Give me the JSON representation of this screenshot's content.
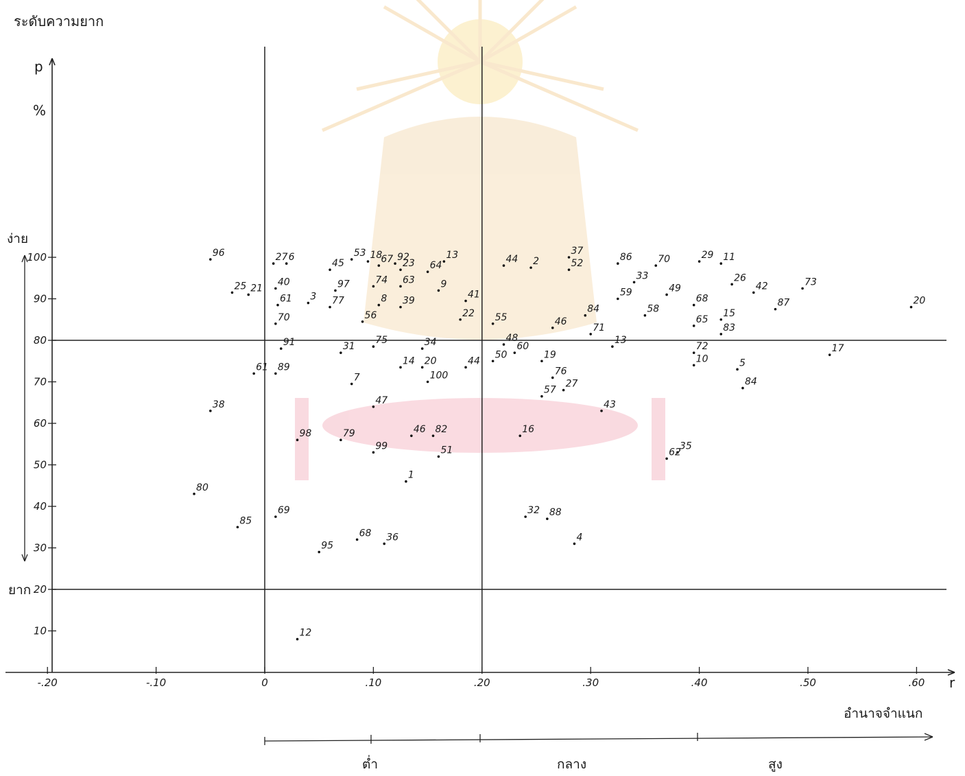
{
  "chart_data": {
    "type": "scatter",
    "title": "",
    "ylabel": "ระดับความยาก",
    "y_unit_p": "p",
    "y_unit_percent": "%",
    "xlabel": "อำนาจจำแนก",
    "x_unit": "r",
    "xlim": [
      -0.2,
      0.62
    ],
    "ylim": [
      0,
      100
    ],
    "x_ticks": [
      {
        "value": -0.2,
        "label": "-.20"
      },
      {
        "value": -0.1,
        "label": "-.10"
      },
      {
        "value": 0.0,
        "label": "0"
      },
      {
        "value": 0.1,
        "label": ".10"
      },
      {
        "value": 0.2,
        "label": ".20"
      },
      {
        "value": 0.3,
        "label": ".30"
      },
      {
        "value": 0.4,
        "label": ".40"
      },
      {
        "value": 0.5,
        "label": ".50"
      },
      {
        "value": 0.6,
        "label": ".60"
      }
    ],
    "y_ticks": [
      {
        "value": 10,
        "label": "10"
      },
      {
        "value": 20,
        "label": "20"
      },
      {
        "value": 30,
        "label": "30"
      },
      {
        "value": 40,
        "label": "40"
      },
      {
        "value": 50,
        "label": "50"
      },
      {
        "value": 60,
        "label": "60"
      },
      {
        "value": 70,
        "label": "70"
      },
      {
        "value": 80,
        "label": "80"
      },
      {
        "value": 90,
        "label": "90"
      },
      {
        "value": 100,
        "label": "100"
      }
    ],
    "reference_lines": {
      "x": [
        0.0,
        0.2
      ],
      "y": [
        20,
        80
      ]
    },
    "difficulty_labels": {
      "easy": "ง่าย",
      "hard": "ยาก"
    },
    "discrimination_labels": {
      "low": "ต่ำ",
      "mid": "กลาง",
      "high": "สูง"
    },
    "points": [
      {
        "label": "96",
        "x": -0.05,
        "y": 99.5
      },
      {
        "label": "25",
        "x": -0.03,
        "y": 91.5
      },
      {
        "label": "21",
        "x": -0.015,
        "y": 91.0
      },
      {
        "label": "27",
        "x": 0.008,
        "y": 98.5
      },
      {
        "label": "6",
        "x": 0.02,
        "y": 98.5
      },
      {
        "label": "40",
        "x": 0.01,
        "y": 92.5
      },
      {
        "label": "61",
        "x": 0.012,
        "y": 88.5
      },
      {
        "label": "70",
        "x": 0.01,
        "y": 84.0
      },
      {
        "label": "45",
        "x": 0.06,
        "y": 97.0
      },
      {
        "label": "53",
        "x": 0.08,
        "y": 99.5
      },
      {
        "label": "18",
        "x": 0.095,
        "y": 99.0
      },
      {
        "label": "67",
        "x": 0.105,
        "y": 98.0
      },
      {
        "label": "92",
        "x": 0.12,
        "y": 98.5
      },
      {
        "label": "23",
        "x": 0.125,
        "y": 97.0
      },
      {
        "label": "64",
        "x": 0.15,
        "y": 96.5
      },
      {
        "label": "13",
        "x": 0.165,
        "y": 99.0
      },
      {
        "label": "97",
        "x": 0.065,
        "y": 92.0
      },
      {
        "label": "3",
        "x": 0.04,
        "y": 89.0
      },
      {
        "label": "77",
        "x": 0.06,
        "y": 88.0
      },
      {
        "label": "74",
        "x": 0.1,
        "y": 93.0
      },
      {
        "label": "63",
        "x": 0.125,
        "y": 93.0
      },
      {
        "label": "9",
        "x": 0.16,
        "y": 92.0
      },
      {
        "label": "41",
        "x": 0.185,
        "y": 89.5
      },
      {
        "label": "8",
        "x": 0.105,
        "y": 88.5
      },
      {
        "label": "39",
        "x": 0.125,
        "y": 88.0
      },
      {
        "label": "56",
        "x": 0.09,
        "y": 84.5
      },
      {
        "label": "22",
        "x": 0.18,
        "y": 85.0
      },
      {
        "label": "44",
        "x": 0.22,
        "y": 98.0
      },
      {
        "label": "2",
        "x": 0.245,
        "y": 97.5
      },
      {
        "label": "37",
        "x": 0.28,
        "y": 100.0
      },
      {
        "label": "52",
        "x": 0.28,
        "y": 97.0
      },
      {
        "label": "86",
        "x": 0.325,
        "y": 98.5
      },
      {
        "label": "70",
        "x": 0.36,
        "y": 98.0
      },
      {
        "label": "33",
        "x": 0.34,
        "y": 94.0
      },
      {
        "label": "29",
        "x": 0.4,
        "y": 99.0
      },
      {
        "label": "11",
        "x": 0.42,
        "y": 98.5
      },
      {
        "label": "26",
        "x": 0.43,
        "y": 93.5
      },
      {
        "label": "42",
        "x": 0.45,
        "y": 91.5
      },
      {
        "label": "73",
        "x": 0.495,
        "y": 92.5
      },
      {
        "label": "59",
        "x": 0.325,
        "y": 90.0
      },
      {
        "label": "49",
        "x": 0.37,
        "y": 91.0
      },
      {
        "label": "68",
        "x": 0.395,
        "y": 88.5
      },
      {
        "label": "87",
        "x": 0.47,
        "y": 87.5
      },
      {
        "label": "20",
        "x": 0.595,
        "y": 88.0
      },
      {
        "label": "84",
        "x": 0.295,
        "y": 86.0
      },
      {
        "label": "58",
        "x": 0.35,
        "y": 86.0
      },
      {
        "label": "65",
        "x": 0.395,
        "y": 83.5
      },
      {
        "label": "15",
        "x": 0.42,
        "y": 85.0
      },
      {
        "label": "83",
        "x": 0.42,
        "y": 81.5
      },
      {
        "label": "55",
        "x": 0.21,
        "y": 84.0
      },
      {
        "label": "46",
        "x": 0.265,
        "y": 83.0
      },
      {
        "label": "71",
        "x": 0.3,
        "y": 81.5
      },
      {
        "label": "91",
        "x": 0.015,
        "y": 78.0
      },
      {
        "label": "31",
        "x": 0.07,
        "y": 77.0
      },
      {
        "label": "75",
        "x": 0.1,
        "y": 78.5
      },
      {
        "label": "34",
        "x": 0.145,
        "y": 78.0
      },
      {
        "label": "48",
        "x": 0.22,
        "y": 79.0
      },
      {
        "label": "60",
        "x": 0.23,
        "y": 77.0
      },
      {
        "label": "13",
        "x": 0.32,
        "y": 78.5
      },
      {
        "label": "72",
        "x": 0.395,
        "y": 77.0
      },
      {
        "label": "17",
        "x": 0.52,
        "y": 76.5
      },
      {
        "label": "50",
        "x": 0.21,
        "y": 75.0
      },
      {
        "label": "19",
        "x": 0.255,
        "y": 75.0
      },
      {
        "label": "10",
        "x": 0.395,
        "y": 74.0
      },
      {
        "label": "5",
        "x": 0.435,
        "y": 73.0
      },
      {
        "label": "61",
        "x": -0.01,
        "y": 72.0
      },
      {
        "label": "89",
        "x": 0.01,
        "y": 72.0
      },
      {
        "label": "14",
        "x": 0.125,
        "y": 73.5
      },
      {
        "label": "20",
        "x": 0.145,
        "y": 73.5
      },
      {
        "label": "44",
        "x": 0.185,
        "y": 73.5
      },
      {
        "label": "76",
        "x": 0.265,
        "y": 71.0
      },
      {
        "label": "7",
        "x": 0.08,
        "y": 69.5
      },
      {
        "label": "100",
        "x": 0.15,
        "y": 70.0
      },
      {
        "label": "84",
        "x": 0.44,
        "y": 68.5
      },
      {
        "label": "27",
        "x": 0.275,
        "y": 68.0
      },
      {
        "label": "57",
        "x": 0.255,
        "y": 66.5
      },
      {
        "label": "38",
        "x": -0.05,
        "y": 63.0
      },
      {
        "label": "47",
        "x": 0.1,
        "y": 64.0
      },
      {
        "label": "43",
        "x": 0.31,
        "y": 63.0
      },
      {
        "label": "98",
        "x": 0.03,
        "y": 56.0
      },
      {
        "label": "79",
        "x": 0.07,
        "y": 56.0
      },
      {
        "label": "46",
        "x": 0.135,
        "y": 57.0
      },
      {
        "label": "82",
        "x": 0.155,
        "y": 57.0
      },
      {
        "label": "16",
        "x": 0.235,
        "y": 57.0
      },
      {
        "label": "99",
        "x": 0.1,
        "y": 53.0
      },
      {
        "label": "51",
        "x": 0.16,
        "y": 52.0
      },
      {
        "label": "35",
        "x": 0.38,
        "y": 53.0
      },
      {
        "label": "62",
        "x": 0.37,
        "y": 51.5
      },
      {
        "label": "1",
        "x": 0.13,
        "y": 46.0
      },
      {
        "label": "80",
        "x": -0.065,
        "y": 43.0
      },
      {
        "label": "85",
        "x": -0.025,
        "y": 35.0
      },
      {
        "label": "69",
        "x": 0.01,
        "y": 37.5
      },
      {
        "label": "32",
        "x": 0.24,
        "y": 37.5
      },
      {
        "label": "88",
        "x": 0.26,
        "y": 37.0
      },
      {
        "label": "68",
        "x": 0.085,
        "y": 32.0
      },
      {
        "label": "36",
        "x": 0.11,
        "y": 31.0
      },
      {
        "label": "95",
        "x": 0.05,
        "y": 29.0
      },
      {
        "label": "4",
        "x": 0.285,
        "y": 31.0
      },
      {
        "label": "12",
        "x": 0.03,
        "y": 8.0
      }
    ]
  }
}
